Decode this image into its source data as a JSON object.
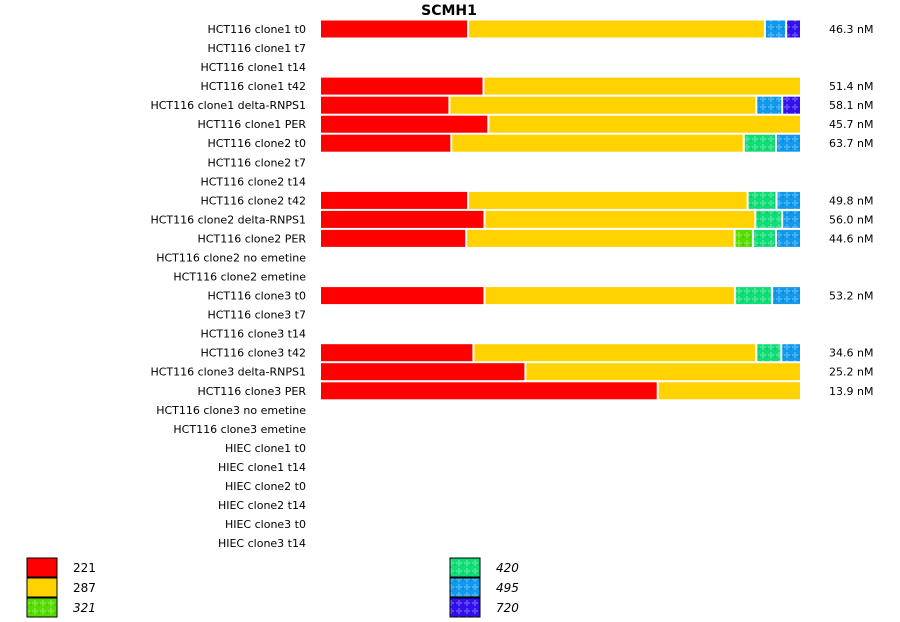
{
  "chart_data": {
    "type": "bar",
    "orientation": "horizontal",
    "stacked": "normalized",
    "title": "SCMH1",
    "xlabel": "",
    "ylabel": "",
    "grid": false,
    "legend_position": "bottom",
    "value_unit": "percent of bar",
    "series_keys": [
      "221",
      "287",
      "321",
      "420",
      "495",
      "720"
    ],
    "legend": [
      {
        "key": "221",
        "label": "221",
        "color": "#ff0000",
        "pattern": false,
        "italic": false
      },
      {
        "key": "287",
        "label": "287",
        "color": "#ffd200",
        "pattern": false,
        "italic": false
      },
      {
        "key": "321",
        "label": "321",
        "color": "#55dd00",
        "pattern": true,
        "italic": true
      },
      {
        "key": "420",
        "label": "420",
        "color": "#11dd77",
        "pattern": true,
        "italic": true
      },
      {
        "key": "495",
        "label": "495",
        "color": "#1199ee",
        "pattern": true,
        "italic": true
      },
      {
        "key": "720",
        "label": "720",
        "color": "#3311ee",
        "pattern": true,
        "italic": true
      }
    ],
    "categories": [
      "HCT116 clone1 t0",
      "HCT116 clone1 t7",
      "HCT116 clone1 t14",
      "HCT116 clone1 t42",
      "HCT116 clone1 delta-RNPS1",
      "HCT116 clone1 PER",
      "HCT116 clone2 t0",
      "HCT116 clone2 t7",
      "HCT116 clone2 t14",
      "HCT116 clone2 t42",
      "HCT116 clone2 delta-RNPS1",
      "HCT116 clone2 PER",
      "HCT116 clone2 no emetine",
      "HCT116 clone2 emetine",
      "HCT116 clone3 t0",
      "HCT116 clone3 t7",
      "HCT116 clone3 t14",
      "HCT116 clone3 t42",
      "HCT116 clone3 delta-RNPS1",
      "HCT116 clone3 PER",
      "HCT116 clone3 no emetine",
      "HCT116 clone3 emetine",
      "HIEC clone1 t0",
      "HIEC clone1 t14",
      "HIEC clone2 t0",
      "HIEC clone2 t14",
      "HIEC clone3 t0",
      "HIEC clone3 t14"
    ],
    "rows": [
      {
        "segments": {
          "221": 30.8,
          "287": 61.7,
          "495": 4.4,
          "720": 3.1
        },
        "total": "46.3 nM"
      },
      {
        "segments": {},
        "total": ""
      },
      {
        "segments": {},
        "total": ""
      },
      {
        "segments": {
          "221": 34.0,
          "287": 66.0
        },
        "total": "51.4 nM"
      },
      {
        "segments": {
          "221": 26.9,
          "287": 63.8,
          "495": 5.4,
          "720": 3.9
        },
        "total": "58.1 nM"
      },
      {
        "segments": {
          "221": 35.0,
          "287": 65.0
        },
        "total": "45.7 nM"
      },
      {
        "segments": {
          "221": 27.3,
          "287": 60.8,
          "420": 6.7,
          "495": 5.2
        },
        "total": "63.7 nM"
      },
      {
        "segments": {},
        "total": ""
      },
      {
        "segments": {},
        "total": ""
      },
      {
        "segments": {
          "221": 30.8,
          "287": 58.1,
          "420": 6.0,
          "495": 5.1
        },
        "total": "49.8 nM"
      },
      {
        "segments": {
          "221": 34.2,
          "287": 56.3,
          "420": 5.6,
          "495": 3.9
        },
        "total": "56.0 nM"
      },
      {
        "segments": {
          "221": 30.4,
          "287": 55.8,
          "321": 3.8,
          "420": 4.8,
          "495": 5.2
        },
        "total": "44.6 nM"
      },
      {
        "segments": {},
        "total": ""
      },
      {
        "segments": {},
        "total": ""
      },
      {
        "segments": {
          "221": 34.2,
          "287": 52.1,
          "420": 7.7,
          "495": 6.0
        },
        "total": "53.2 nM"
      },
      {
        "segments": {},
        "total": ""
      },
      {
        "segments": {},
        "total": ""
      },
      {
        "segments": {
          "221": 31.9,
          "287": 58.8,
          "420": 5.2,
          "495": 4.1
        },
        "total": "34.6 nM"
      },
      {
        "segments": {
          "221": 42.7,
          "287": 57.3
        },
        "total": "25.2 nM"
      },
      {
        "segments": {
          "221": 70.2,
          "287": 29.8
        },
        "total": "13.9 nM"
      },
      {
        "segments": {},
        "total": ""
      },
      {
        "segments": {},
        "total": ""
      },
      {
        "segments": {},
        "total": ""
      },
      {
        "segments": {},
        "total": ""
      },
      {
        "segments": {},
        "total": ""
      },
      {
        "segments": {},
        "total": ""
      },
      {
        "segments": {},
        "total": ""
      },
      {
        "segments": {},
        "total": ""
      }
    ]
  }
}
